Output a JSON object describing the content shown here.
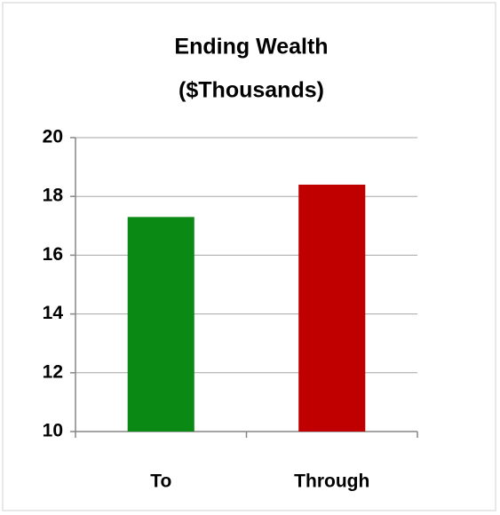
{
  "chart_data": {
    "type": "bar",
    "title": [
      "Ending Wealth",
      "($Thousands)"
    ],
    "categories": [
      "To",
      "Through"
    ],
    "values": [
      17.3,
      18.4
    ],
    "colors": [
      "#0a8a14",
      "#c00000"
    ],
    "ylim": [
      10,
      20
    ],
    "yticks": [
      10,
      12,
      14,
      16,
      18,
      20
    ],
    "grid": true
  }
}
